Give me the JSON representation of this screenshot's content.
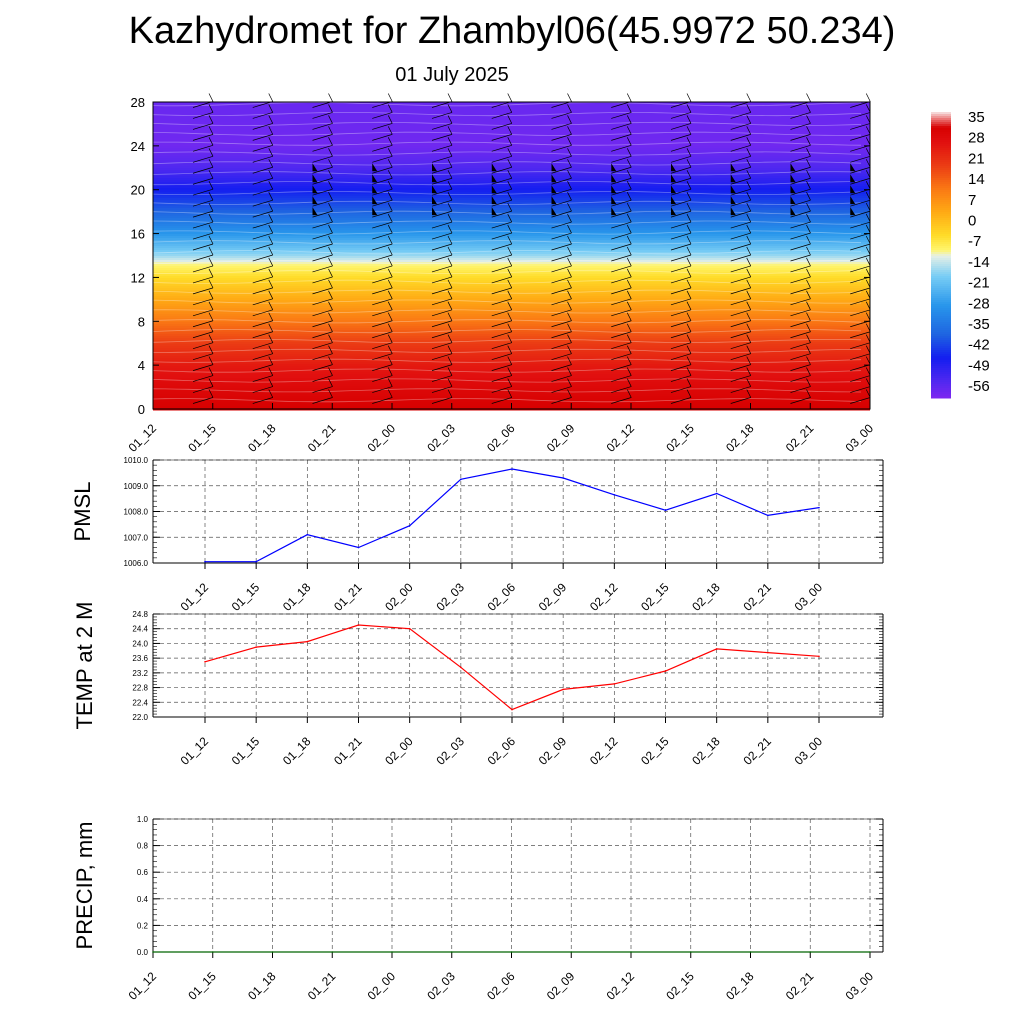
{
  "title": "Kazhydromet for Zhambyl06(45.9972 50.234)",
  "subtitle": "01 July 2025",
  "time_labels": [
    "01_12",
    "01_15",
    "01_18",
    "01_21",
    "02_00",
    "02_03",
    "02_06",
    "02_09",
    "02_12",
    "02_15",
    "02_18",
    "02_21",
    "03_00"
  ],
  "colors": {
    "pmsl_line": "#0000ff",
    "temp_line": "#ff0000",
    "precip_line": "#006400"
  },
  "chart_data": [
    {
      "type": "heatmap",
      "name": "vertical-cross-section",
      "x": [
        "01_12",
        "01_15",
        "01_18",
        "01_21",
        "02_00",
        "02_03",
        "02_06",
        "02_09",
        "02_12",
        "02_15",
        "02_18",
        "02_21",
        "03_00"
      ],
      "y_ticks": [
        "0",
        "4",
        "8",
        "12",
        "16",
        "20",
        "24",
        "28"
      ],
      "ylim": [
        0,
        28
      ],
      "colorbar": {
        "labels": [
          "35",
          "28",
          "21",
          "14",
          "7",
          "0",
          "-7",
          "-14",
          "-21",
          "-28",
          "-35",
          "-42",
          "-49",
          "-56"
        ],
        "range": [
          -60,
          38
        ]
      },
      "profile_by_height": [
        {
          "z": 0,
          "value": 33
        },
        {
          "z": 2,
          "value": 30
        },
        {
          "z": 4,
          "value": 26
        },
        {
          "z": 6,
          "value": 20
        },
        {
          "z": 8,
          "value": 12
        },
        {
          "z": 10,
          "value": 4
        },
        {
          "z": 12,
          "value": -4
        },
        {
          "z": 13.3,
          "value": -10
        },
        {
          "z": 14,
          "value": -16
        },
        {
          "z": 16,
          "value": -28
        },
        {
          "z": 18,
          "value": -38
        },
        {
          "z": 20,
          "value": -46
        },
        {
          "z": 22,
          "value": -54
        },
        {
          "z": 24,
          "value": -58
        },
        {
          "z": 28,
          "value": -57
        }
      ],
      "grid": false
    },
    {
      "type": "line",
      "ylabel": "PMSL",
      "categories": [
        "01_12",
        "01_15",
        "01_18",
        "01_21",
        "02_00",
        "02_03",
        "02_06",
        "02_09",
        "02_12",
        "02_15",
        "02_18",
        "02_21",
        "03_00"
      ],
      "series": [
        {
          "values": [
            1006.05,
            1006.05,
            1007.1,
            1006.6,
            1007.45,
            1009.25,
            1009.65,
            1009.3,
            1008.65,
            1008.05,
            1008.7,
            1007.85,
            1008.15
          ]
        }
      ],
      "ylim": [
        1006.0,
        1010.0
      ],
      "y_ticks": [
        "1006.0",
        "1007.0",
        "1008.0",
        "1009.0",
        "1010.0"
      ],
      "grid": true
    },
    {
      "type": "line",
      "ylabel": "TEMP at 2 M",
      "categories": [
        "01_12",
        "01_15",
        "01_18",
        "01_21",
        "02_00",
        "02_03",
        "02_06",
        "02_09",
        "02_12",
        "02_15",
        "02_18",
        "02_21",
        "03_00"
      ],
      "series": [
        {
          "values": [
            23.5,
            23.9,
            24.05,
            24.5,
            24.4,
            23.35,
            22.2,
            22.75,
            22.9,
            23.25,
            23.85,
            23.75,
            23.65
          ]
        }
      ],
      "ylim": [
        22.0,
        24.8
      ],
      "y_ticks": [
        "22.0",
        "22.4",
        "22.8",
        "23.2",
        "23.6",
        "24.0",
        "24.4",
        "24.8"
      ],
      "grid": true
    },
    {
      "type": "line",
      "ylabel": "PRECIP, mm",
      "categories": [
        "01_12",
        "01_15",
        "01_18",
        "01_21",
        "02_00",
        "02_03",
        "02_06",
        "02_09",
        "02_12",
        "02_15",
        "02_18",
        "02_21",
        "03_00"
      ],
      "series": [
        {
          "values": [
            0,
            0,
            0,
            0,
            0,
            0,
            0,
            0,
            0,
            0,
            0,
            0,
            0
          ]
        }
      ],
      "ylim": [
        0.0,
        1.0
      ],
      "y_ticks": [
        "0.0",
        "0.2",
        "0.4",
        "0.6",
        "0.8",
        "1.0"
      ],
      "grid": true
    }
  ]
}
